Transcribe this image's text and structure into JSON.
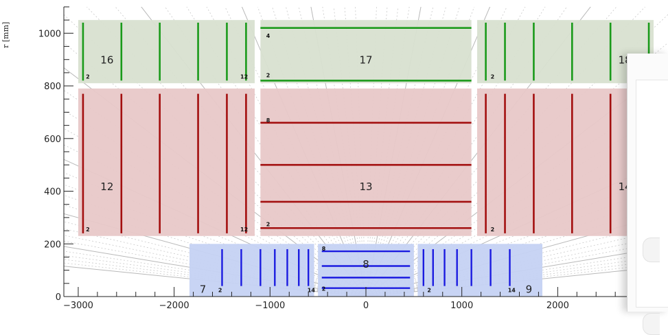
{
  "axis": {
    "y_label": "r [mm]",
    "x_range": [
      -3150,
      3150
    ],
    "y_range": [
      0,
      1100
    ],
    "x_ticks": [
      -3000,
      -2000,
      -1000,
      0,
      1000,
      2000
    ],
    "x_tick_labels": [
      "−3000",
      "−2000",
      "−1000",
      "0",
      "1000",
      "2000"
    ],
    "y_ticks": [
      0,
      200,
      400,
      600,
      800,
      1000
    ],
    "y_tick_labels": [
      "0",
      "200",
      "400",
      "600",
      "800",
      "1000"
    ]
  },
  "colors": {
    "pixel_fill": "#c5d2f3",
    "pixel_line": "#1b1be0",
    "short_strip_fill": "#e8c8c8",
    "short_strip_line": "#a30f0f",
    "long_strip_fill": "#d8e0d0",
    "long_strip_line": "#1a9a1a"
  },
  "volumes": [
    {
      "id": "7",
      "label": "7",
      "kind": "pixel",
      "x": [
        -1840,
        -540
      ],
      "y": [
        0,
        200
      ],
      "label_at": [
        -1700,
        30
      ],
      "layers": {
        "orientation": "disk",
        "positions": [
          -1500,
          -1300,
          -1100,
          -950,
          -820,
          -700,
          -600
        ],
        "span": [
          40,
          180
        ]
      },
      "first_index": "2",
      "last_index": "14",
      "first_at": [
        -1540,
        25
      ],
      "last_at": [
        -610,
        25
      ]
    },
    {
      "id": "8",
      "label": "8",
      "kind": "pixel",
      "x": [
        -500,
        500
      ],
      "y": [
        0,
        200
      ],
      "label_at": [
        0,
        125
      ],
      "layers": {
        "orientation": "barrel",
        "positions": [
          32,
          72,
          116,
          172
        ],
        "span": [
          -460,
          460
        ]
      },
      "first_index": "2",
      "last_index": "8",
      "first_at": [
        -460,
        30
      ],
      "last_at": [
        -460,
        182
      ]
    },
    {
      "id": "9",
      "label": "9",
      "kind": "pixel",
      "x": [
        540,
        1840
      ],
      "y": [
        0,
        200
      ],
      "label_at": [
        1700,
        30
      ],
      "layers": {
        "orientation": "disk",
        "positions": [
          600,
          700,
          820,
          950,
          1100,
          1300,
          1500
        ],
        "span": [
          40,
          180
        ]
      },
      "first_index": "2",
      "last_index": "14",
      "first_at": [
        640,
        25
      ],
      "last_at": [
        1480,
        25
      ]
    },
    {
      "id": "12",
      "label": "12",
      "kind": "short_strip",
      "x": [
        -3000,
        -1160
      ],
      "y": [
        230,
        790
      ],
      "label_at": [
        -2700,
        420
      ],
      "layers": {
        "orientation": "disk",
        "positions": [
          -2950,
          -2550,
          -2150,
          -1750,
          -1450,
          -1250
        ],
        "span": [
          240,
          770
        ]
      },
      "first_index": "2",
      "last_index": "12",
      "first_at": [
        -2920,
        255
      ],
      "last_at": [
        -1310,
        255
      ]
    },
    {
      "id": "13",
      "label": "13",
      "kind": "short_strip",
      "x": [
        -1100,
        1100
      ],
      "y": [
        230,
        790
      ],
      "label_at": [
        0,
        420
      ],
      "layers": {
        "orientation": "barrel",
        "positions": [
          260,
          360,
          500,
          660
        ],
        "span": [
          -1100,
          1100
        ]
      },
      "first_index": "2",
      "last_index": "8",
      "first_at": [
        -1040,
        275
      ],
      "last_at": [
        -1040,
        670
      ]
    },
    {
      "id": "14",
      "label": "14",
      "kind": "short_strip",
      "x": [
        1160,
        3000
      ],
      "y": [
        230,
        790
      ],
      "label_at": [
        2700,
        420
      ],
      "layers": {
        "orientation": "disk",
        "positions": [
          1250,
          1450,
          1750,
          2150,
          2550,
          2950
        ],
        "span": [
          240,
          770
        ]
      },
      "first_index": "2",
      "last_index": "",
      "first_at": [
        1300,
        255
      ],
      "last_at": [
        0,
        0
      ]
    },
    {
      "id": "16",
      "label": "16",
      "kind": "long_strip",
      "x": [
        -3000,
        -1160
      ],
      "y": [
        810,
        1050
      ],
      "label_at": [
        -2700,
        900
      ],
      "layers": {
        "orientation": "disk",
        "positions": [
          -2950,
          -2550,
          -2150,
          -1750,
          -1450,
          -1250
        ],
        "span": [
          820,
          1040
        ]
      },
      "first_index": "2",
      "last_index": "12",
      "first_at": [
        -2920,
        835
      ],
      "last_at": [
        -1310,
        835
      ]
    },
    {
      "id": "17",
      "label": "17",
      "kind": "long_strip",
      "x": [
        -1100,
        1100
      ],
      "y": [
        810,
        1050
      ],
      "label_at": [
        0,
        900
      ],
      "layers": {
        "orientation": "barrel",
        "positions": [
          820,
          1020
        ],
        "span": [
          -1100,
          1100
        ]
      },
      "first_index": "2",
      "last_index": "4",
      "first_at": [
        -1040,
        840
      ],
      "last_at": [
        -1040,
        990
      ]
    },
    {
      "id": "18",
      "label": "18",
      "kind": "long_strip",
      "x": [
        1160,
        3000
      ],
      "y": [
        810,
        1050
      ],
      "label_at": [
        2700,
        900
      ],
      "layers": {
        "orientation": "disk",
        "positions": [
          1250,
          1450,
          1750,
          2150,
          2550,
          2950
        ],
        "span": [
          820,
          1040
        ]
      },
      "first_index": "2",
      "last_index": "",
      "first_at": [
        1300,
        835
      ],
      "last_at": [
        0,
        0
      ]
    }
  ]
}
